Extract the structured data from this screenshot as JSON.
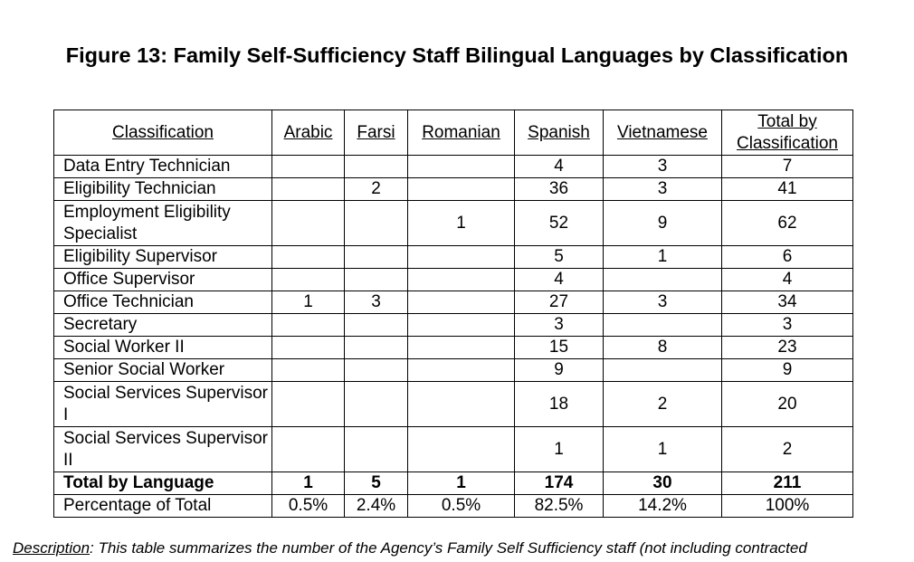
{
  "title": "Figure 13: Family Self-Sufficiency Staff Bilingual Languages by Classification",
  "headers": [
    "Classification",
    "Arabic",
    "Farsi",
    "Romanian",
    "Spanish",
    "Vietnamese",
    "Total by Classification"
  ],
  "rows": [
    [
      "Data Entry Technician",
      "",
      "",
      "",
      "4",
      "3",
      "7"
    ],
    [
      "Eligibility Technician",
      "",
      "2",
      "",
      "36",
      "3",
      "41"
    ],
    [
      "Employment Eligibility Specialist",
      "",
      "",
      "1",
      "52",
      "9",
      "62"
    ],
    [
      "Eligibility Supervisor",
      "",
      "",
      "",
      "5",
      "1",
      "6"
    ],
    [
      "Office Supervisor",
      "",
      "",
      "",
      "4",
      "",
      "4"
    ],
    [
      "Office Technician",
      "1",
      "3",
      "",
      "27",
      "3",
      "34"
    ],
    [
      "Secretary",
      "",
      "",
      "",
      "3",
      "",
      "3"
    ],
    [
      "Social Worker II",
      "",
      "",
      "",
      "15",
      "8",
      "23"
    ],
    [
      "Senior Social Worker",
      "",
      "",
      "",
      "9",
      "",
      "9"
    ],
    [
      "Social Services Supervisor I",
      "",
      "",
      "",
      "18",
      "2",
      "20"
    ],
    [
      "Social Services Supervisor II",
      "",
      "",
      "",
      "1",
      "1",
      "2"
    ]
  ],
  "total_row": [
    "Total by Language",
    "1",
    "5",
    "1",
    "174",
    "30",
    "211"
  ],
  "percent_row": [
    "Percentage of Total",
    "0.5%",
    "2.4%",
    "0.5%",
    "82.5%",
    "14.2%",
    "100%"
  ],
  "description": {
    "label": "Description",
    "text": ": This table summarizes the number of the Agency’s Family Self Sufficiency staff (not including contracted"
  }
}
